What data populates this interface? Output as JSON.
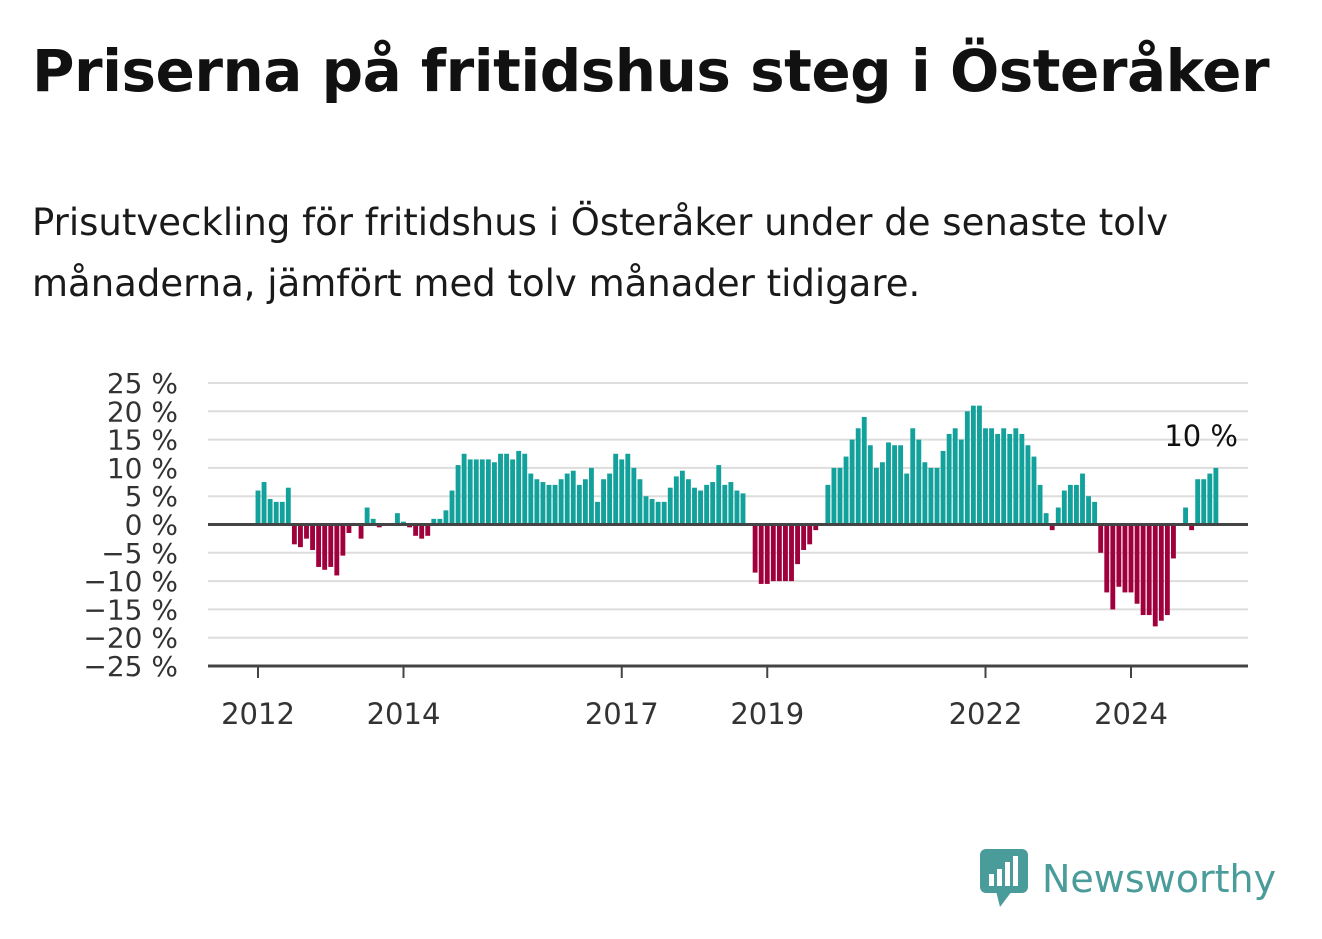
{
  "title": "Priserna på fritidshus steg i Österåker",
  "subtitle": "Prisutveckling för fritidshus i Österåker under de senaste tolv månaderna, jämfört med tolv månader tidigare.",
  "brand": {
    "name": "Newsworthy",
    "icon": "bar-chart-logo-icon",
    "color": "#4a9c9a"
  },
  "colors": {
    "positive": "#13a19b",
    "negative": "#a0003c",
    "grid": "#dddddd",
    "zero_line": "#444444",
    "axis": "#444444"
  },
  "chart_data": {
    "type": "bar",
    "x_start": "2012-01",
    "x_end": "2025-10",
    "x_ticks": [
      {
        "label": "2012",
        "x": "2012-01"
      },
      {
        "label": "2014",
        "x": "2014-01"
      },
      {
        "label": "2017",
        "x": "2017-01"
      },
      {
        "label": "2019",
        "x": "2019-01"
      },
      {
        "label": "2022",
        "x": "2022-01"
      },
      {
        "label": "2024",
        "x": "2024-01"
      }
    ],
    "y_ticks": [
      {
        "value": 25,
        "label": "25 %"
      },
      {
        "value": 20,
        "label": "20 %"
      },
      {
        "value": 15,
        "label": "15 %"
      },
      {
        "value": 10,
        "label": "10 %"
      },
      {
        "value": 5,
        "label": "5 %"
      },
      {
        "value": 0,
        "label": "0 %"
      },
      {
        "value": -5,
        "label": "−5 %"
      },
      {
        "value": -10,
        "label": "−10 %"
      },
      {
        "value": -15,
        "label": "−15 %"
      },
      {
        "value": -20,
        "label": "−20 %"
      },
      {
        "value": -25,
        "label": "−25 %"
      }
    ],
    "ylim": [
      -25,
      25
    ],
    "grid": true,
    "series": [
      {
        "start": "2012-01",
        "values": [
          6,
          7.5,
          4.5,
          4,
          4,
          6.5,
          -3.5,
          -4,
          -2.5,
          -4.5,
          -7.5,
          -8,
          -7.5,
          -9,
          -5.5,
          -1.5,
          0,
          -2.5,
          3,
          1,
          -0.5,
          0,
          0,
          2,
          0.5,
          -0.5,
          -2,
          -2.5,
          -2,
          1,
          1,
          2.5,
          6,
          10.5,
          12.5,
          11.5,
          11.5,
          11.5,
          11.5,
          11,
          12.5,
          12.5,
          11.5,
          13,
          12.5,
          9,
          8,
          7.5,
          7,
          7,
          8,
          9,
          9.5,
          7,
          8,
          10,
          4,
          8,
          9,
          12.5,
          11.5,
          12.5,
          10,
          8,
          5,
          4.5,
          4,
          4,
          6.5,
          8.5,
          9.5,
          8,
          6.5,
          6,
          7,
          7.5,
          10.5,
          7,
          7.5,
          6,
          5.5,
          0,
          -8.5,
          -10.5,
          -10.5,
          -10,
          -10,
          -10,
          -10,
          -7,
          -4.5,
          -3.5,
          -1,
          0,
          7,
          10,
          10,
          12,
          15,
          17,
          19,
          14,
          10,
          11,
          14.5,
          14,
          14,
          9,
          17,
          15,
          11,
          10,
          10,
          13,
          16,
          17,
          15,
          20,
          21,
          21,
          17,
          17,
          16,
          17,
          16,
          17,
          16,
          14,
          12,
          7,
          2,
          -1,
          3,
          6,
          7,
          7,
          9,
          5,
          4,
          -5,
          -12,
          -15,
          -11,
          -12,
          -12,
          -14,
          -16,
          -16,
          -18,
          -17,
          -16,
          -6,
          0,
          3,
          -1,
          8,
          8,
          9,
          10
        ]
      }
    ],
    "annotation": {
      "text": "10 %",
      "x": "2025-10",
      "value": 10
    }
  }
}
